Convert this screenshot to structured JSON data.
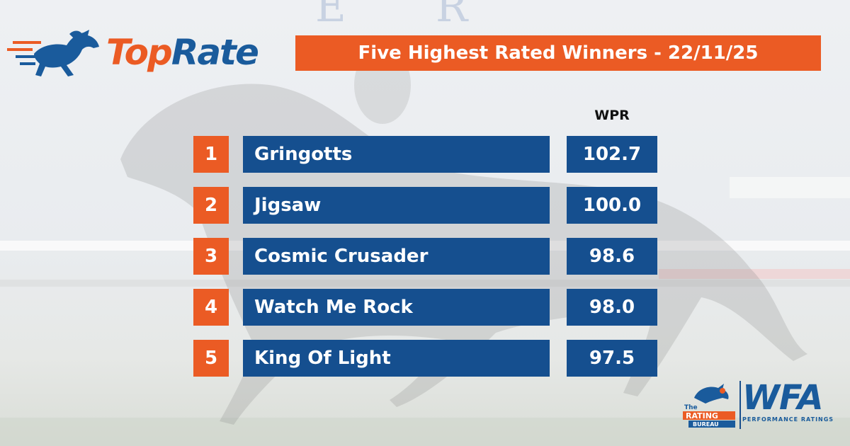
{
  "brand": {
    "name_part1": "Top",
    "name_part2": "Rate"
  },
  "banner": {
    "title": "Five Highest Rated Winners - 22/11/25"
  },
  "table": {
    "value_header": "WPR",
    "rows": [
      {
        "rank": "1",
        "horse": "Gringotts",
        "wpr": "102.7"
      },
      {
        "rank": "2",
        "horse": "Jigsaw",
        "wpr": "100.0"
      },
      {
        "rank": "3",
        "horse": "Cosmic Crusader",
        "wpr": "98.6"
      },
      {
        "rank": "4",
        "horse": "Watch Me Rock",
        "wpr": "98.0"
      },
      {
        "rank": "5",
        "horse": "King Of Light",
        "wpr": "97.5"
      }
    ]
  },
  "footer_logos": {
    "rating_bureau": {
      "line1": "The",
      "line2": "RATING",
      "line3": "BUREAU"
    },
    "wfa": {
      "title": "WFA",
      "subtitle": "PERFORMANCE RATINGS"
    }
  },
  "colors": {
    "orange": "#eb5b24",
    "blue": "#154f8f"
  }
}
